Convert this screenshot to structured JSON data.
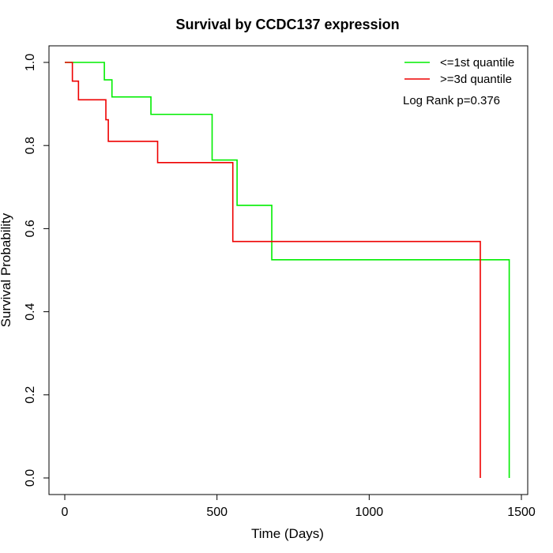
{
  "chart_data": {
    "type": "line",
    "title": "Survival by CCDC137 expression",
    "xlabel": "Time (Days)",
    "ylabel": "Survival Probability",
    "xlim": [
      0,
      1500
    ],
    "ylim": [
      0,
      1.0
    ],
    "xticks": [
      0,
      500,
      1000,
      1500
    ],
    "yticks": [
      0.0,
      0.2,
      0.4,
      0.6,
      0.8,
      1.0
    ],
    "xtick_labels": [
      "0",
      "500",
      "1000",
      "1500"
    ],
    "ytick_labels": [
      "0.0",
      "0.2",
      "0.4",
      "0.6",
      "0.8",
      "1.0"
    ],
    "legend_position": "top-right",
    "annotation": "Log Rank p=0.376",
    "grid": false,
    "series": [
      {
        "name": "<=1st quantile",
        "color": "#00ee00",
        "x": [
          0,
          130,
          155,
          283,
          484,
          566,
          680,
          1460,
          1460
        ],
        "y": [
          1.0,
          0.958,
          0.917,
          0.875,
          0.765,
          0.656,
          0.525,
          0.525,
          0.0
        ]
      },
      {
        "name": ">=3d quantile",
        "color": "#ee0000",
        "x": [
          0,
          25,
          45,
          135,
          143,
          305,
          552,
          1365,
          1365
        ],
        "y": [
          1.0,
          0.955,
          0.91,
          0.862,
          0.81,
          0.759,
          0.569,
          0.569,
          0.0
        ]
      }
    ]
  }
}
